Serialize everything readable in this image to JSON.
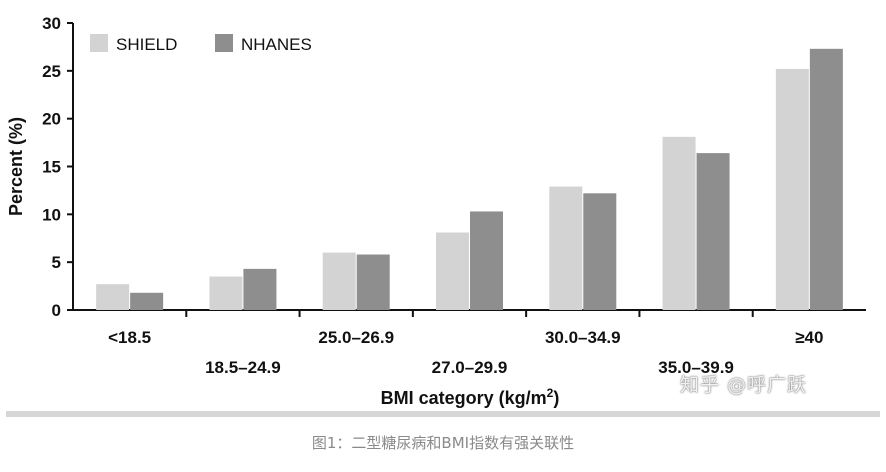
{
  "chart_data": {
    "type": "bar",
    "categories": [
      "<18.5",
      "18.5–24.9",
      "25.0–26.9",
      "27.0–29.9",
      "30.0–34.9",
      "35.0–39.9",
      "≥40"
    ],
    "series": [
      {
        "name": "SHIELD",
        "values": [
          2.7,
          3.5,
          6.0,
          8.1,
          12.9,
          18.1,
          25.2
        ]
      },
      {
        "name": "NHANES",
        "values": [
          1.8,
          4.3,
          5.8,
          10.3,
          12.2,
          16.4,
          27.3
        ]
      }
    ],
    "xlabel": "BMI category (kg/m",
    "xlabel_sup": "2",
    "xlabel_close": ")",
    "ylabel": "Percent (%)",
    "ylim": [
      0,
      30
    ],
    "yticks": [
      0,
      5,
      10,
      15,
      20,
      25,
      30
    ],
    "grid": false,
    "legend": "top-left",
    "colors": {
      "SHIELD": "#d3d3d3",
      "NHANES": "#8e8e8e"
    }
  },
  "watermark": "知乎 @呼广跃",
  "caption": "图1：二型糖尿病和BMI指数有强关联性"
}
